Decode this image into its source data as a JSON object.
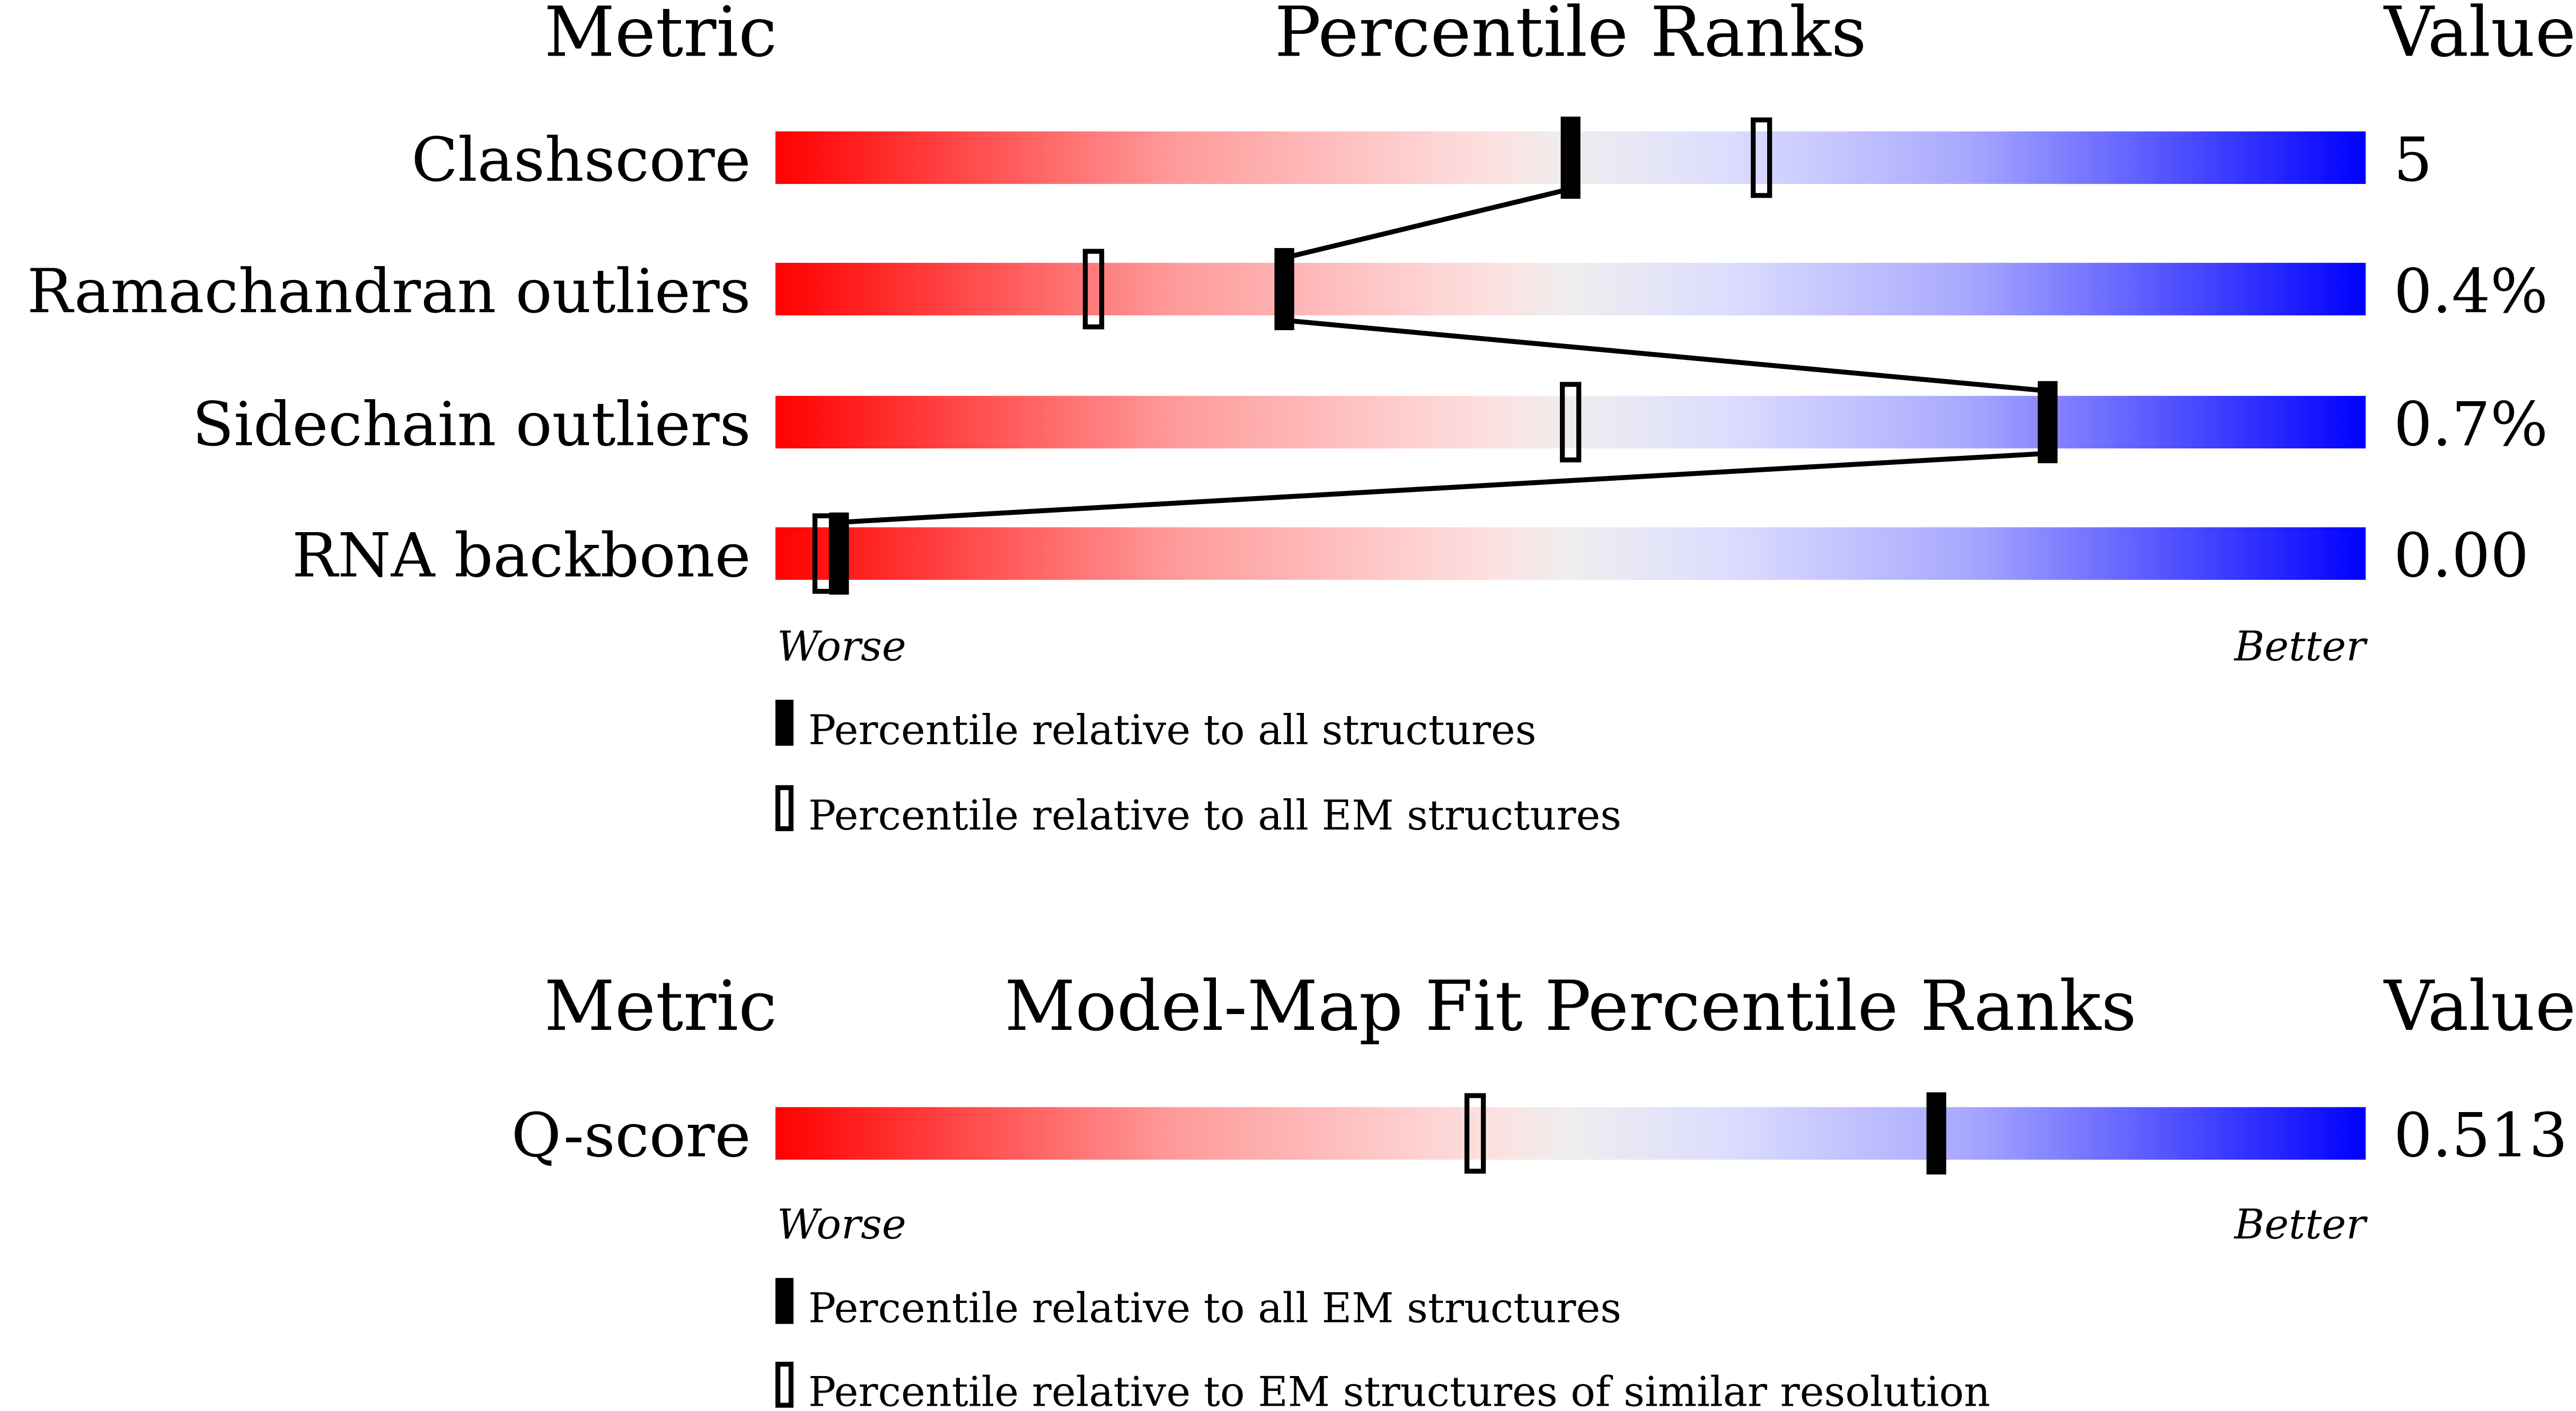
{
  "chart_data": [
    {
      "type": "percentile-bar",
      "header": {
        "metric": "Metric",
        "title": "Percentile Ranks",
        "value": "Value"
      },
      "xlim": [
        0,
        100
      ],
      "scale_labels": {
        "worse": "Worse",
        "better": "Better"
      },
      "gradient_colors": [
        "#ff0000",
        "#eeeeee",
        "#0000ff"
      ],
      "legend": [
        {
          "marker": "filled",
          "label": "Percentile relative to all structures"
        },
        {
          "marker": "open",
          "label": "Percentile relative to all EM structures"
        }
      ],
      "rows": [
        {
          "metric": "Clashscore",
          "value": "5",
          "filled": 50,
          "open": 62
        },
        {
          "metric": "Ramachandran outliers",
          "value": "0.4%",
          "filled": 32,
          "open": 20
        },
        {
          "metric": "Sidechain outliers",
          "value": "0.7%",
          "filled": 80,
          "open": 50
        },
        {
          "metric": "RNA backbone",
          "value": "0.00",
          "filled": 4,
          "open": 3
        }
      ],
      "connect_filled": true
    },
    {
      "type": "percentile-bar",
      "header": {
        "metric": "Metric",
        "title": "Model-Map Fit Percentile Ranks",
        "value": "Value"
      },
      "xlim": [
        0,
        100
      ],
      "scale_labels": {
        "worse": "Worse",
        "better": "Better"
      },
      "gradient_colors": [
        "#ff0000",
        "#eeeeee",
        "#0000ff"
      ],
      "legend": [
        {
          "marker": "filled",
          "label": "Percentile relative to all EM structures"
        },
        {
          "marker": "open",
          "label": "Percentile relative to EM structures of similar resolution"
        }
      ],
      "rows": [
        {
          "metric": "Q-score",
          "value": "0.513",
          "filled": 73,
          "open": 44
        }
      ],
      "connect_filled": false
    }
  ]
}
